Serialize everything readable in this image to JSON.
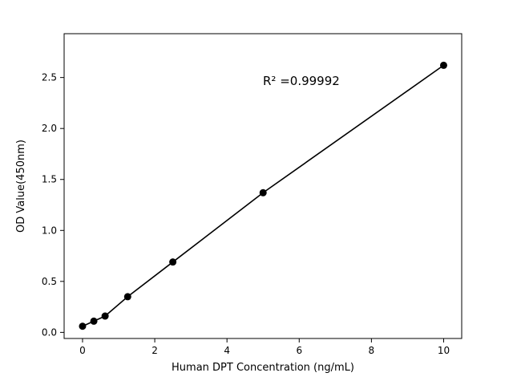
{
  "chart_data": {
    "type": "scatter",
    "title": "",
    "xlabel": "Human DPT Concentration (ng/mL)",
    "ylabel": "OD Value(450nm)",
    "annotation": "R² =0.99992",
    "x": [
      0,
      0.3125,
      0.625,
      1.25,
      2.5,
      5,
      10
    ],
    "y": [
      0.06,
      0.11,
      0.16,
      0.35,
      0.69,
      1.37,
      2.62
    ],
    "fit_line": {
      "x_start": 0,
      "y_start": 0.06,
      "x_end": 10,
      "y_end": 2.62
    },
    "xlim": [
      -0.51,
      10.5
    ],
    "ylim": [
      -0.06,
      2.93
    ],
    "x_tick_values": [
      0,
      2,
      4,
      6,
      8,
      10
    ],
    "x_tick_labels": [
      "0",
      "2",
      "4",
      "6",
      "8",
      "10"
    ],
    "y_tick_values": [
      0.0,
      0.5,
      1.0,
      1.5,
      2.0,
      2.5
    ],
    "y_tick_labels": [
      "0.0",
      "0.5",
      "1.0",
      "1.5",
      "2.0",
      "2.5"
    ],
    "grid": false,
    "legend": "none",
    "marker_color": "#000000",
    "line_color": "#000000",
    "text_color": "#000000",
    "background_color": "#ffffff"
  }
}
